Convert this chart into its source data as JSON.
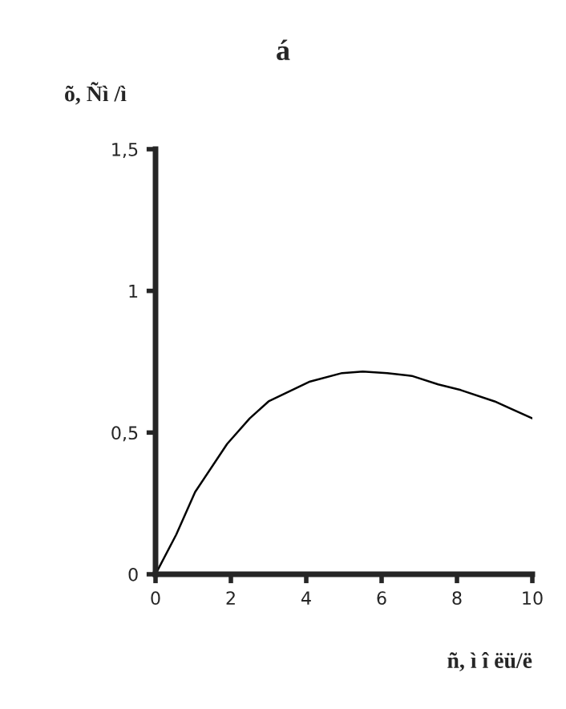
{
  "chart_data": {
    "type": "line",
    "title": "á",
    "ylabel": "õ, Ñì /ì",
    "xlabel": "ñ, ì î ëü/ë",
    "series": [
      {
        "color": "#000000",
        "x": [
          0,
          0.55,
          1.05,
          1.9,
          2.5,
          3.0,
          4.1,
          4.95,
          5.5,
          6.15,
          6.8,
          7.5,
          8.1,
          9.0,
          10
        ],
        "values": [
          0,
          0.14,
          0.29,
          0.46,
          0.55,
          0.61,
          0.68,
          0.71,
          0.715,
          0.71,
          0.7,
          0.67,
          0.65,
          0.61,
          0.55
        ]
      }
    ],
    "xlim": [
      0,
      10
    ],
    "ylim": [
      0,
      1.5
    ],
    "xticks": [
      0,
      2,
      4,
      6,
      8,
      10
    ],
    "yticks": [
      0,
      {
        "value": 0.5,
        "label": "0,5"
      },
      1,
      {
        "value": 1.5,
        "label": "1,5"
      }
    ],
    "grid": false,
    "legend": false,
    "marker": "none",
    "line_style": "solid"
  }
}
